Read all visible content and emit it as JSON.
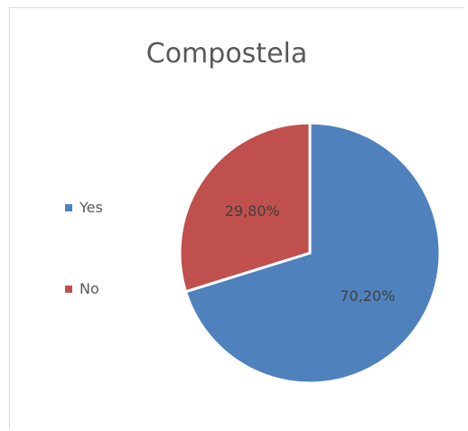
{
  "chart_data": {
    "type": "pie",
    "title": "Compostela",
    "categories": [
      "Yes",
      "No"
    ],
    "values": [
      70.2,
      29.8
    ],
    "value_labels": [
      "70,20%",
      "29,80%"
    ],
    "colors": [
      "#4f81bd",
      "#c0504d"
    ],
    "legend_position": "left",
    "start_angle": "12 o'clock",
    "direction": "clockwise"
  }
}
